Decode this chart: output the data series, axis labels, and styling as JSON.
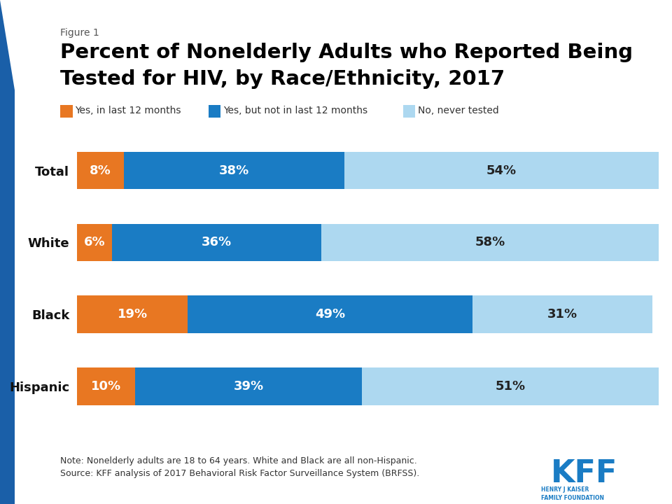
{
  "figure_label": "Figure 1",
  "title_line1": "Percent of Nonelderly Adults who Reported Being",
  "title_line2": "Tested for HIV, by Race/Ethnicity, 2017",
  "categories": [
    "Total",
    "White",
    "Black",
    "Hispanic"
  ],
  "series": {
    "yes_12mo": [
      8,
      6,
      19,
      10
    ],
    "yes_not_12mo": [
      38,
      36,
      49,
      39
    ],
    "no_never": [
      54,
      58,
      31,
      51
    ]
  },
  "colors": {
    "yes_12mo": "#E87722",
    "yes_not_12mo": "#1A7CC4",
    "no_never": "#ADD8F0"
  },
  "legend_labels": [
    "Yes, in last 12 months",
    "Yes, but not in last 12 months",
    "No, never tested"
  ],
  "note_text": "Note: Nonelderly adults are 18 to 64 years. White and Black are all non-Hispanic.\nSource: KFF analysis of 2017 Behavioral Risk Factor Surveillance System (BRFSS).",
  "background_color": "#FFFFFF",
  "title_color": "#000000",
  "figure_label_color": "#555555",
  "accent_bar_color": "#1A5FA8"
}
